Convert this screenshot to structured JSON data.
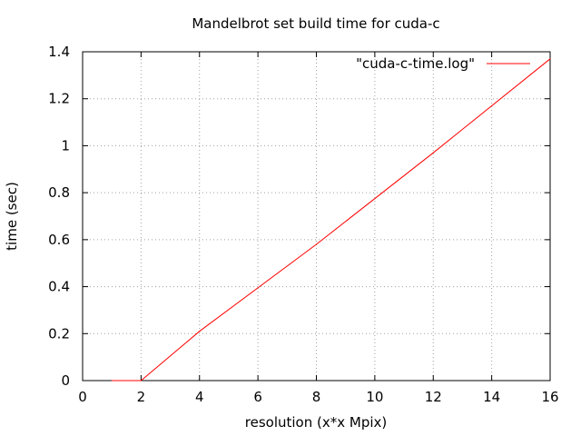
{
  "chart_data": {
    "type": "line",
    "title": "Mandelbrot set build time for cuda-c",
    "xlabel": "resolution (x*x Mpix)",
    "ylabel": "time (sec)",
    "xlim": [
      0,
      16
    ],
    "ylim": [
      0,
      1.4
    ],
    "xticks": [
      "0",
      "2",
      "4",
      "6",
      "8",
      "10",
      "12",
      "14",
      "16"
    ],
    "yticks": [
      "0",
      "0.2",
      "0.4",
      "0.6",
      "0.8",
      "1",
      "1.2",
      "1.4"
    ],
    "grid": true,
    "legend_position": "top-right",
    "series": [
      {
        "name": "\"cuda-c-time.log\"",
        "color": "#ff0000",
        "x": [
          1,
          2,
          4,
          8,
          12,
          16
        ],
        "y": [
          0.0,
          0.0,
          0.21,
          0.58,
          0.97,
          1.37
        ]
      }
    ]
  }
}
